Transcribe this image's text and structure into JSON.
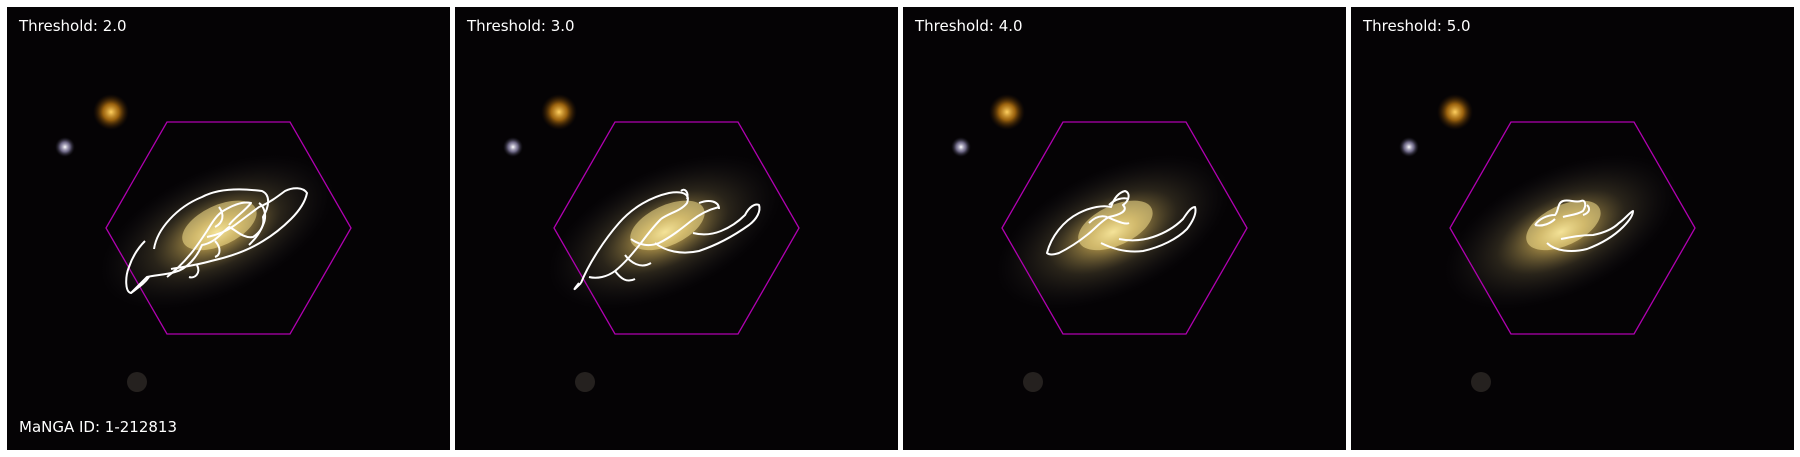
{
  "manga_id_label": "MaNGA ID: 1-212813",
  "panels": [
    {
      "threshold_label": "Threshold: 2.0",
      "threshold": 2.0
    },
    {
      "threshold_label": "Threshold: 3.0",
      "threshold": 3.0
    },
    {
      "threshold_label": "Threshold: 4.0",
      "threshold": 4.0
    },
    {
      "threshold_label": "Threshold: 5.0",
      "threshold": 5.0
    }
  ],
  "colors": {
    "background": "#050305",
    "galaxy_core": "#f2d77a",
    "galaxy_halo": "#8a7a4a",
    "hexagon": "#b000b0",
    "contour": "#ffffff",
    "star_orange": "#f0a020",
    "star_white": "#d8d0ff"
  }
}
